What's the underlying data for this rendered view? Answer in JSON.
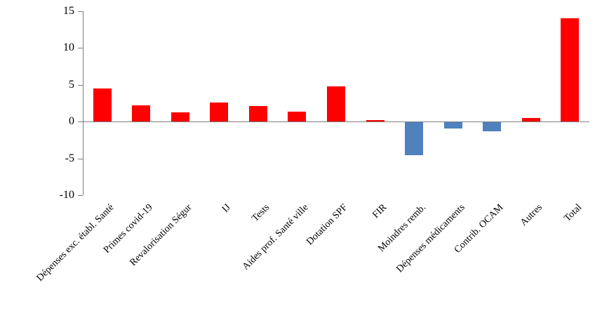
{
  "chart_data": {
    "type": "bar",
    "title": "",
    "xlabel": "",
    "ylabel": "",
    "categories": [
      "Dépenses exc. établ. Santé",
      "Primes covid-19",
      "Revalorisation Ségur",
      "IJ",
      "Tests",
      "Aides prof. Santé ville",
      "Dotation SPF",
      "FIR",
      "Moindres remb.",
      "Dépenses médicaments",
      "Contrib. OCAM",
      "Autres",
      "Total"
    ],
    "values": [
      4.5,
      2.2,
      1.3,
      2.6,
      2.1,
      1.4,
      4.8,
      0.2,
      -4.5,
      -0.8,
      -1.2,
      0.5,
      14
    ],
    "ylim": [
      -10,
      15
    ],
    "yticks": [
      15,
      10,
      5,
      0,
      -5,
      -10
    ],
    "grid": "off",
    "legend": "none",
    "positive_color": "#fe0000",
    "negative_color": "#4f81bd",
    "axis_color": "#7f7f7f"
  }
}
